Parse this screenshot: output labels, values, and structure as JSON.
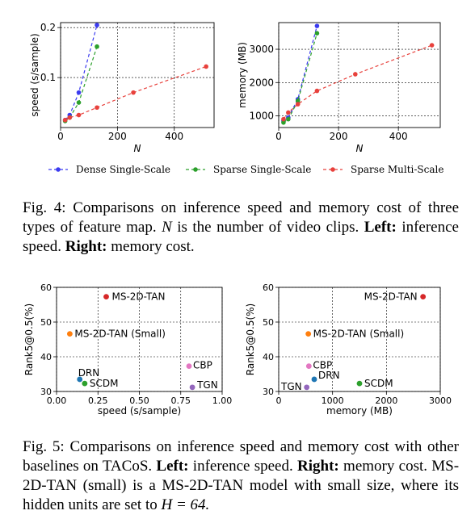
{
  "fig4": {
    "legend": [
      "Dense Single-Scale",
      "Sparse Single-Scale",
      "Sparse Multi-Scale"
    ],
    "caption_head": "Fig. 4:",
    "caption_body_1": "Comparisons on inference speed and memory cost of three types of feature map.",
    "caption_N": "N",
    "caption_body_2": "is the number of video clips.",
    "caption_left": "Left:",
    "caption_left_text": "inference speed.",
    "caption_right": "Right:",
    "caption_right_text": "memory cost."
  },
  "fig5": {
    "caption_head": "Fig. 5:",
    "caption_body_1": "Comparisons on inference speed and memory cost with other baselines on TACoS.",
    "caption_left": "Left:",
    "caption_left_text": "inference speed.",
    "caption_right": "Right:",
    "caption_right_text": "memory cost. MS-2D-TAN (small) is a MS-2D-TAN model with small size, where its hidden units are set to",
    "caption_eq": "H = 64."
  },
  "chart_data": [
    {
      "type": "line",
      "xlabel": "N",
      "ylabel": "speed (s/sample)",
      "xlim": [
        0,
        540
      ],
      "ylim": [
        0,
        0.21
      ],
      "xticks": [
        0,
        200,
        400
      ],
      "yticks": [
        0.1,
        0.2
      ],
      "grid": true,
      "series": [
        {
          "name": "Dense Single-Scale",
          "color": "#3b3bf0",
          "x": [
            16,
            32,
            64,
            128
          ],
          "y": [
            0.015,
            0.025,
            0.07,
            0.205
          ]
        },
        {
          "name": "Sparse Single-Scale",
          "color": "#2ca02c",
          "x": [
            16,
            32,
            64,
            128
          ],
          "y": [
            0.013,
            0.02,
            0.05,
            0.162
          ]
        },
        {
          "name": "Sparse Multi-Scale",
          "color": "#e8413c",
          "x": [
            16,
            32,
            64,
            128,
            256,
            512
          ],
          "y": [
            0.015,
            0.02,
            0.025,
            0.04,
            0.07,
            0.122
          ]
        }
      ]
    },
    {
      "type": "line",
      "xlabel": "N",
      "ylabel": "memory (MB)",
      "xlim": [
        0,
        540
      ],
      "ylim": [
        650,
        3800
      ],
      "xticks": [
        0,
        200,
        400
      ],
      "yticks": [
        1000,
        2000,
        3000
      ],
      "grid": true,
      "series": [
        {
          "name": "Dense Single-Scale",
          "color": "#3b3bf0",
          "x": [
            16,
            32,
            64,
            128
          ],
          "y": [
            850,
            950,
            1500,
            3700
          ]
        },
        {
          "name": "Sparse Single-Scale",
          "color": "#2ca02c",
          "x": [
            16,
            32,
            64,
            128
          ],
          "y": [
            800,
            900,
            1450,
            3480
          ]
        },
        {
          "name": "Sparse Multi-Scale",
          "color": "#e8413c",
          "x": [
            16,
            32,
            64,
            128,
            256,
            512
          ],
          "y": [
            900,
            1100,
            1350,
            1750,
            2250,
            3120
          ]
        }
      ]
    },
    {
      "type": "scatter",
      "xlabel": "speed (s/sample)",
      "ylabel": "Rank5@0.5(%)",
      "xlim": [
        0,
        1.0
      ],
      "ylim": [
        30,
        60
      ],
      "xticks": [
        "0.00",
        "0.25",
        "0.50",
        "0.75",
        "1.00"
      ],
      "yticks": [
        30,
        40,
        50,
        60
      ],
      "grid": true,
      "points": [
        {
          "label": "MS-2D-TAN",
          "x": 0.3,
          "y": 57.3,
          "color": "#d62728"
        },
        {
          "label": "MS-2D-TAN (Small)",
          "x": 0.08,
          "y": 46.6,
          "color": "#ff7f0e"
        },
        {
          "label": "CBP",
          "x": 0.8,
          "y": 37.3,
          "color": "#e377c2"
        },
        {
          "label": "TGN",
          "x": 0.82,
          "y": 31.2,
          "color": "#9467bd"
        },
        {
          "label": "DRN",
          "x": 0.14,
          "y": 33.5,
          "color": "#1f77b4"
        },
        {
          "label": "SCDM",
          "x": 0.17,
          "y": 32.3,
          "color": "#2ca02c"
        }
      ]
    },
    {
      "type": "scatter",
      "xlabel": "memory (MB)",
      "ylabel": "Rank5@0.5(%)",
      "xlim": [
        0,
        3000
      ],
      "ylim": [
        30,
        60
      ],
      "xticks": [
        0,
        1000,
        2000,
        3000
      ],
      "yticks": [
        30,
        40,
        50,
        60
      ],
      "grid": true,
      "points": [
        {
          "label": "MS-2D-TAN",
          "x": 2680,
          "y": 57.3,
          "color": "#d62728"
        },
        {
          "label": "MS-2D-TAN (Small)",
          "x": 550,
          "y": 46.6,
          "color": "#ff7f0e"
        },
        {
          "label": "CBP",
          "x": 560,
          "y": 37.3,
          "color": "#e377c2"
        },
        {
          "label": "TGN",
          "x": 520,
          "y": 31.2,
          "color": "#9467bd"
        },
        {
          "label": "DRN",
          "x": 660,
          "y": 33.5,
          "color": "#1f77b4"
        },
        {
          "label": "SCDM",
          "x": 1500,
          "y": 32.3,
          "color": "#2ca02c"
        }
      ]
    }
  ]
}
